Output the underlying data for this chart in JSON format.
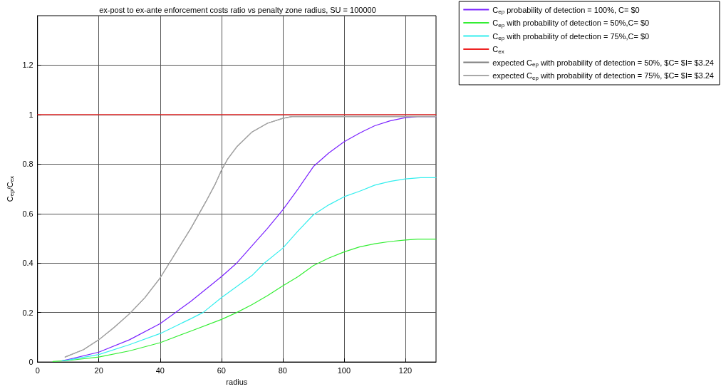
{
  "chart_data": {
    "type": "line",
    "title": "ex-post to ex-ante enforcement costs ratio vs penalty zone radius, SU = 100000",
    "xlabel": "radius",
    "ylabel": "C$_{ep}$/C$_{ex}$",
    "xlim": [
      0,
      130
    ],
    "xticks": [
      0,
      20,
      40,
      60,
      80,
      100,
      120
    ],
    "ylim": [
      0,
      1.4
    ],
    "yticks": [
      0,
      0.2,
      0.4,
      0.6,
      0.8,
      1,
      1.2
    ],
    "grid": true,
    "legend": "top right",
    "marker": "none",
    "line_style": "solid",
    "series": [
      {
        "name": "C$_{ep}$ probability of detection = 100%, C= $0",
        "color": "#7a22ff",
        "x": [
          8,
          10,
          20,
          30,
          40,
          45,
          50,
          60,
          65,
          70,
          75,
          80,
          85,
          90,
          95,
          100,
          105,
          110,
          115,
          120,
          124,
          130
        ],
        "values": [
          0.005,
          0.01,
          0.04,
          0.09,
          0.155,
          0.2,
          0.245,
          0.345,
          0.4,
          0.47,
          0.54,
          0.615,
          0.7,
          0.79,
          0.845,
          0.89,
          0.925,
          0.955,
          0.975,
          0.988,
          0.992,
          0.992
        ]
      },
      {
        "name": "C$_{ep}$ with probability of detection = 50%,C= $0",
        "color": "#33ee33",
        "x": [
          5,
          10,
          20,
          30,
          40,
          50,
          60,
          65,
          70,
          75,
          80,
          85,
          90,
          95,
          100,
          105,
          110,
          115,
          120,
          124,
          130
        ],
        "values": [
          0.002,
          0.006,
          0.02,
          0.045,
          0.078,
          0.125,
          0.172,
          0.2,
          0.232,
          0.268,
          0.308,
          0.345,
          0.39,
          0.42,
          0.445,
          0.465,
          0.478,
          0.487,
          0.493,
          0.497,
          0.497
        ]
      },
      {
        "name": "C$_{ep}$ with probability of detection = 75%,C= $0",
        "color": "#33eeee",
        "x": [
          8,
          10,
          20,
          30,
          40,
          50,
          54,
          60,
          70,
          74,
          80,
          85,
          90,
          95,
          100,
          105,
          110,
          115,
          120,
          125,
          130
        ],
        "values": [
          0.005,
          0.008,
          0.03,
          0.07,
          0.115,
          0.175,
          0.2,
          0.26,
          0.35,
          0.4,
          0.46,
          0.53,
          0.595,
          0.635,
          0.668,
          0.69,
          0.715,
          0.73,
          0.74,
          0.745,
          0.745
        ]
      },
      {
        "name": "C$_{ex}$",
        "color": "#ee2222",
        "x": [
          0,
          130
        ],
        "values": [
          1,
          1
        ]
      },
      {
        "name": "expected C$_{ep}$ with probability of detection = 50%, $C= $I= $3.24",
        "color": "#808080",
        "x": [
          9,
          15,
          20,
          25,
          30,
          35,
          40,
          43,
          46,
          50,
          55,
          58,
          60,
          62,
          65,
          70,
          75,
          80,
          83,
          130
        ],
        "values": [
          0.02,
          0.05,
          0.09,
          0.14,
          0.195,
          0.26,
          0.34,
          0.4,
          0.46,
          0.54,
          0.65,
          0.72,
          0.775,
          0.82,
          0.87,
          0.93,
          0.965,
          0.985,
          0.992,
          0.992
        ]
      },
      {
        "name": "expected C$_{ep}$ with probability of detection = 75%, $C= $I= $3.24",
        "color": "#a8a8a8",
        "x": [
          9,
          15,
          20,
          25,
          30,
          35,
          40,
          43,
          46,
          50,
          55,
          58,
          60,
          62,
          65,
          70,
          75,
          80,
          83,
          130
        ],
        "values": [
          0.02,
          0.05,
          0.09,
          0.14,
          0.195,
          0.26,
          0.34,
          0.4,
          0.46,
          0.54,
          0.65,
          0.72,
          0.775,
          0.82,
          0.87,
          0.93,
          0.965,
          0.985,
          0.992,
          0.992
        ]
      }
    ]
  }
}
